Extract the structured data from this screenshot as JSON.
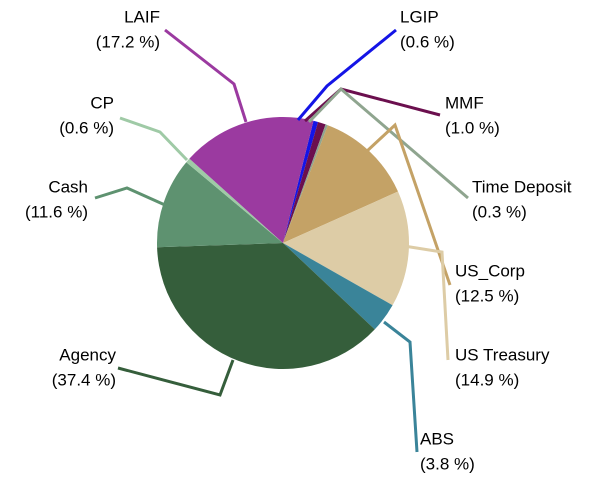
{
  "chart_data": {
    "type": "pie",
    "categories": [
      "LGIP",
      "MMF",
      "Time Deposit",
      "US_Corp",
      "US Treasury",
      "ABS",
      "Agency",
      "Cash",
      "CP",
      "LAIF"
    ],
    "values": [
      0.6,
      1.0,
      0.3,
      12.5,
      14.9,
      3.8,
      37.4,
      11.6,
      0.6,
      17.2
    ],
    "value_labels": [
      "(0.6 %)",
      "(1.0 %)",
      "(0.3 %)",
      "(12.5 %)",
      "(14.9 %)",
      "(3.8 %)",
      "(37.4 %)",
      "(11.6 %)",
      "(0.6 %)",
      "(17.2 %)"
    ],
    "colors": [
      "#1414e6",
      "#6b0f4e",
      "#8fa58f",
      "#c4a266",
      "#ddcca6",
      "#3a8499",
      "#355e3b",
      "#5e9270",
      "#9fcaa6",
      "#9b3aa0"
    ]
  }
}
